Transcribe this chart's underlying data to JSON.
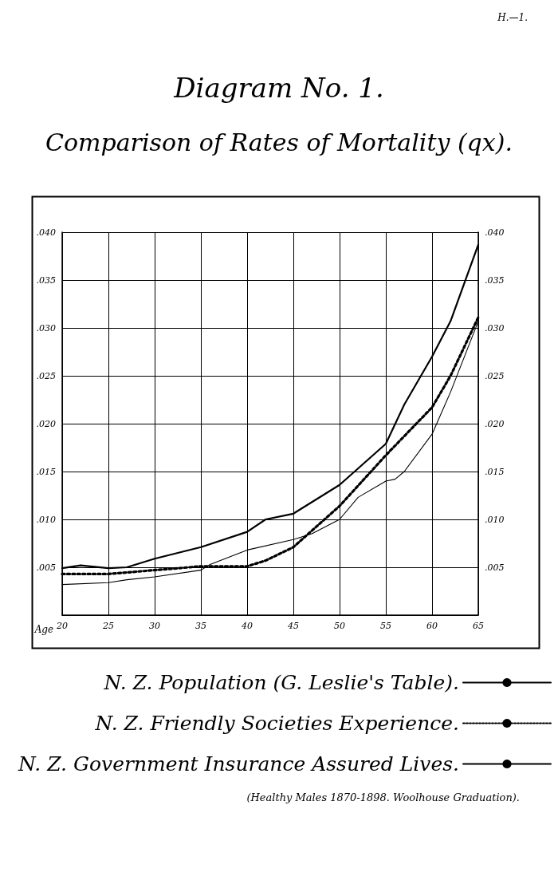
{
  "chart_data": {
    "type": "line",
    "title": "Diagram No. 1.",
    "subtitle": "Comparison of Rates of Mortality (qx).",
    "xlabel": "Age",
    "annotations": [
      "H.—1.",
      "(Healthy Males 1870-1898. Woolhouse Graduation)."
    ],
    "xlim": [
      20,
      65
    ],
    "xticks": [
      20,
      25,
      30,
      35,
      40,
      45,
      50,
      55,
      60,
      65
    ],
    "ylim": [
      0,
      0.04
    ],
    "yticks": [
      {
        "value": 0,
        "label": null
      },
      {
        "value": 0.005,
        "label": ".005"
      },
      {
        "value": 0.01,
        "label": ".010"
      },
      {
        "value": 0.015,
        "label": ".015"
      },
      {
        "value": 0.02,
        "label": ".020"
      },
      {
        "value": 0.025,
        "label": ".025"
      },
      {
        "value": 0.03,
        "label": ".030"
      },
      {
        "value": 0.035,
        "label": ".035"
      },
      {
        "value": 0.04,
        "label": ".040"
      }
    ],
    "y2lim": [
      0,
      0.04
    ],
    "y2ticks": [
      {
        "value": 0,
        "label": null
      },
      {
        "value": 0.005,
        "label": ".005"
      },
      {
        "value": 0.01,
        "label": ".010"
      },
      {
        "value": 0.015,
        "label": ".015"
      },
      {
        "value": 0.02,
        "label": ".020"
      },
      {
        "value": 0.025,
        "label": ".025"
      },
      {
        "value": 0.03,
        "label": ".030"
      },
      {
        "value": 0.035,
        "label": ".035"
      },
      {
        "value": 0.04,
        "label": ".040"
      }
    ],
    "grid": true,
    "legend": "bottom",
    "marker": "none",
    "series": [
      {
        "name": "N. Z. Population (G. Leslie's Table).",
        "color": "#000000",
        "line_style": "solid",
        "x": [
          20,
          22,
          25,
          27,
          30,
          35,
          40,
          42,
          45,
          50,
          55,
          57,
          60,
          62,
          65
        ],
        "values": [
          0.0049,
          0.0052,
          0.0049,
          0.005,
          0.0059,
          0.0071,
          0.0087,
          0.01,
          0.0106,
          0.0136,
          0.0179,
          0.022,
          0.027,
          0.0307,
          0.0387
        ]
      },
      {
        "name": "N. Z. Friendly Societies Experience.",
        "color": "#000000",
        "line_style": "dotted",
        "x": [
          20,
          25,
          30,
          35,
          40,
          42,
          45,
          50,
          55,
          60,
          62,
          65
        ],
        "values": [
          0.0043,
          0.0043,
          0.0047,
          0.0051,
          0.0051,
          0.0057,
          0.0071,
          0.0114,
          0.0167,
          0.0217,
          0.025,
          0.0311
        ]
      },
      {
        "name": "N. Z. Government Insurance Assured Lives.",
        "color": "#000000",
        "line_style": "solid",
        "x": [
          20,
          25,
          27,
          30,
          35,
          36,
          40,
          45,
          47,
          50,
          52,
          55,
          56,
          57,
          60,
          62,
          65
        ],
        "values": [
          0.0032,
          0.0034,
          0.0037,
          0.004,
          0.0047,
          0.0053,
          0.0068,
          0.0079,
          0.0085,
          0.01,
          0.0123,
          0.014,
          0.0142,
          0.015,
          0.0189,
          0.0233,
          0.0307
        ]
      }
    ]
  }
}
